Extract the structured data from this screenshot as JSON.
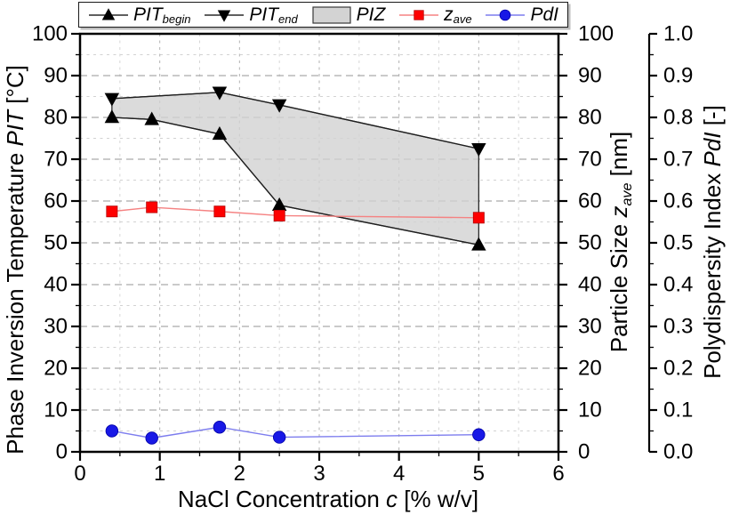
{
  "legend": {
    "items": [
      {
        "key": "pit-begin",
        "type": "line-marker",
        "marker": "triangle-up",
        "marker_color": "#000000",
        "line_color": "#2a2a2a",
        "label_parts": [
          {
            "t": "PIT",
            "i": 1
          },
          {
            "t": "begin",
            "i": 1,
            "s": 1
          }
        ]
      },
      {
        "key": "pit-end",
        "type": "line-marker",
        "marker": "triangle-down",
        "marker_color": "#000000",
        "line_color": "#2a2a2a",
        "label_parts": [
          {
            "t": "PIT",
            "i": 1
          },
          {
            "t": "end",
            "i": 1,
            "s": 1
          }
        ]
      },
      {
        "key": "piz",
        "type": "patch",
        "fill": "#d3d3d3",
        "border": "#3a3a3a",
        "label_parts": [
          {
            "t": "PIZ",
            "i": 1
          }
        ]
      },
      {
        "key": "zave",
        "type": "line-marker",
        "marker": "square",
        "marker_color": "#fe0000",
        "line_color": "#f58282",
        "label_parts": [
          {
            "t": "z",
            "i": 1
          },
          {
            "t": "ave",
            "i": 1,
            "s": 1
          }
        ]
      },
      {
        "key": "pdi",
        "type": "line-marker",
        "marker": "circle",
        "marker_color": "#1818e6",
        "line_color": "#7d7dee",
        "label_parts": [
          {
            "t": "PdI",
            "i": 1
          }
        ]
      }
    ]
  },
  "chart_data": {
    "type": "line",
    "x_axis": {
      "title_parts": [
        {
          "t": "NaCl Concentration "
        },
        {
          "t": "c",
          "i": 1
        },
        {
          "t": " [% w/v]"
        }
      ],
      "range": [
        0,
        6
      ],
      "tick_values": [
        0,
        1,
        2,
        3,
        4,
        5,
        6
      ],
      "tick_labels": [
        "0",
        "1",
        "2",
        "3",
        "4",
        "5",
        "6"
      ],
      "minor_step": 0.5
    },
    "y_left": {
      "title_parts": [
        {
          "t": "Phase Inversion Temperature "
        },
        {
          "t": "PIT",
          "i": 1
        },
        {
          "t": " [°C]"
        }
      ],
      "range": [
        0,
        100
      ],
      "tick_values": [
        0,
        10,
        20,
        30,
        40,
        50,
        60,
        70,
        80,
        90,
        100
      ],
      "tick_labels": [
        "0",
        "10",
        "20",
        "30",
        "40",
        "50",
        "60",
        "70",
        "80",
        "90",
        "100"
      ],
      "minor_step": 5
    },
    "y_right_size": {
      "title_parts": [
        {
          "t": "Particle Size "
        },
        {
          "t": "z",
          "i": 1
        },
        {
          "t": "ave",
          "i": 1,
          "s": 1
        },
        {
          "t": " [nm]"
        }
      ],
      "range": [
        0,
        100
      ],
      "tick_values": [
        0,
        10,
        20,
        30,
        40,
        50,
        60,
        70,
        80,
        90,
        100
      ],
      "tick_labels": [
        "0",
        "10",
        "20",
        "30",
        "40",
        "50",
        "60",
        "70",
        "80",
        "90",
        "100"
      ],
      "minor_step": 5
    },
    "y_right_pdi": {
      "title_parts": [
        {
          "t": "Polydispersity Index "
        },
        {
          "t": "PdI",
          "i": 1
        },
        {
          "t": " [-]"
        }
      ],
      "range": [
        0,
        1
      ],
      "tick_values": [
        0,
        0.1,
        0.2,
        0.3,
        0.4,
        0.5,
        0.6,
        0.7,
        0.8,
        0.9,
        1
      ],
      "tick_labels": [
        "0.0",
        "0.1",
        "0.2",
        "0.3",
        "0.4",
        "0.5",
        "0.6",
        "0.7",
        "0.8",
        "0.9",
        "1.0"
      ],
      "minor_step": 0.05
    },
    "series": [
      {
        "name": "PIT_begin",
        "axis": "y_left",
        "marker": "triangle-up",
        "marker_color": "#000000",
        "line_color": "#1f1f1f",
        "x": [
          0.4,
          0.9,
          1.75,
          2.5,
          5.0
        ],
        "y": [
          80,
          79.5,
          76,
          59,
          49.5
        ]
      },
      {
        "name": "PIT_end",
        "axis": "y_left",
        "marker": "triangle-down",
        "marker_color": "#000000",
        "line_color": "#1f1f1f",
        "x": [
          0.4,
          1.75,
          2.5,
          5.0
        ],
        "y": [
          84.5,
          86,
          83,
          72.5
        ]
      },
      {
        "name": "z_ave",
        "axis": "y_right_size",
        "marker": "square",
        "marker_color": "#fe0000",
        "line_color": "#f58282",
        "x": [
          0.4,
          0.9,
          1.75,
          2.5,
          5.0
        ],
        "y": [
          57.5,
          58.5,
          57.5,
          56.5,
          56
        ]
      },
      {
        "name": "PdI",
        "axis": "y_right_pdi",
        "marker": "circle",
        "marker_color": "#1818e6",
        "line_color": "#7d7dee",
        "x": [
          0.4,
          0.9,
          1.75,
          2.5,
          5.0
        ],
        "y": [
          0.05,
          0.033,
          0.059,
          0.035,
          0.041
        ]
      }
    ],
    "region": {
      "name": "PIZ",
      "axis": "y_left",
      "fill": "#d2d2d2",
      "fill_opacity": 0.8,
      "stroke": "#1c1c1c",
      "upper": {
        "x": [
          0.4,
          1.75,
          2.5,
          5.0
        ],
        "y": [
          84.5,
          86,
          83,
          72.5
        ]
      },
      "lower": {
        "x": [
          0.4,
          0.9,
          1.75,
          2.5,
          5.0
        ],
        "y": [
          80,
          79.5,
          76,
          59,
          49.5
        ]
      }
    },
    "grid": {
      "h_major_color": "#969696",
      "h_minor_color": "#d2d2d2",
      "v_major_color": "#b2b2b2",
      "v_minor_color": "#d7d7d7"
    },
    "frame_color": "#000000"
  }
}
